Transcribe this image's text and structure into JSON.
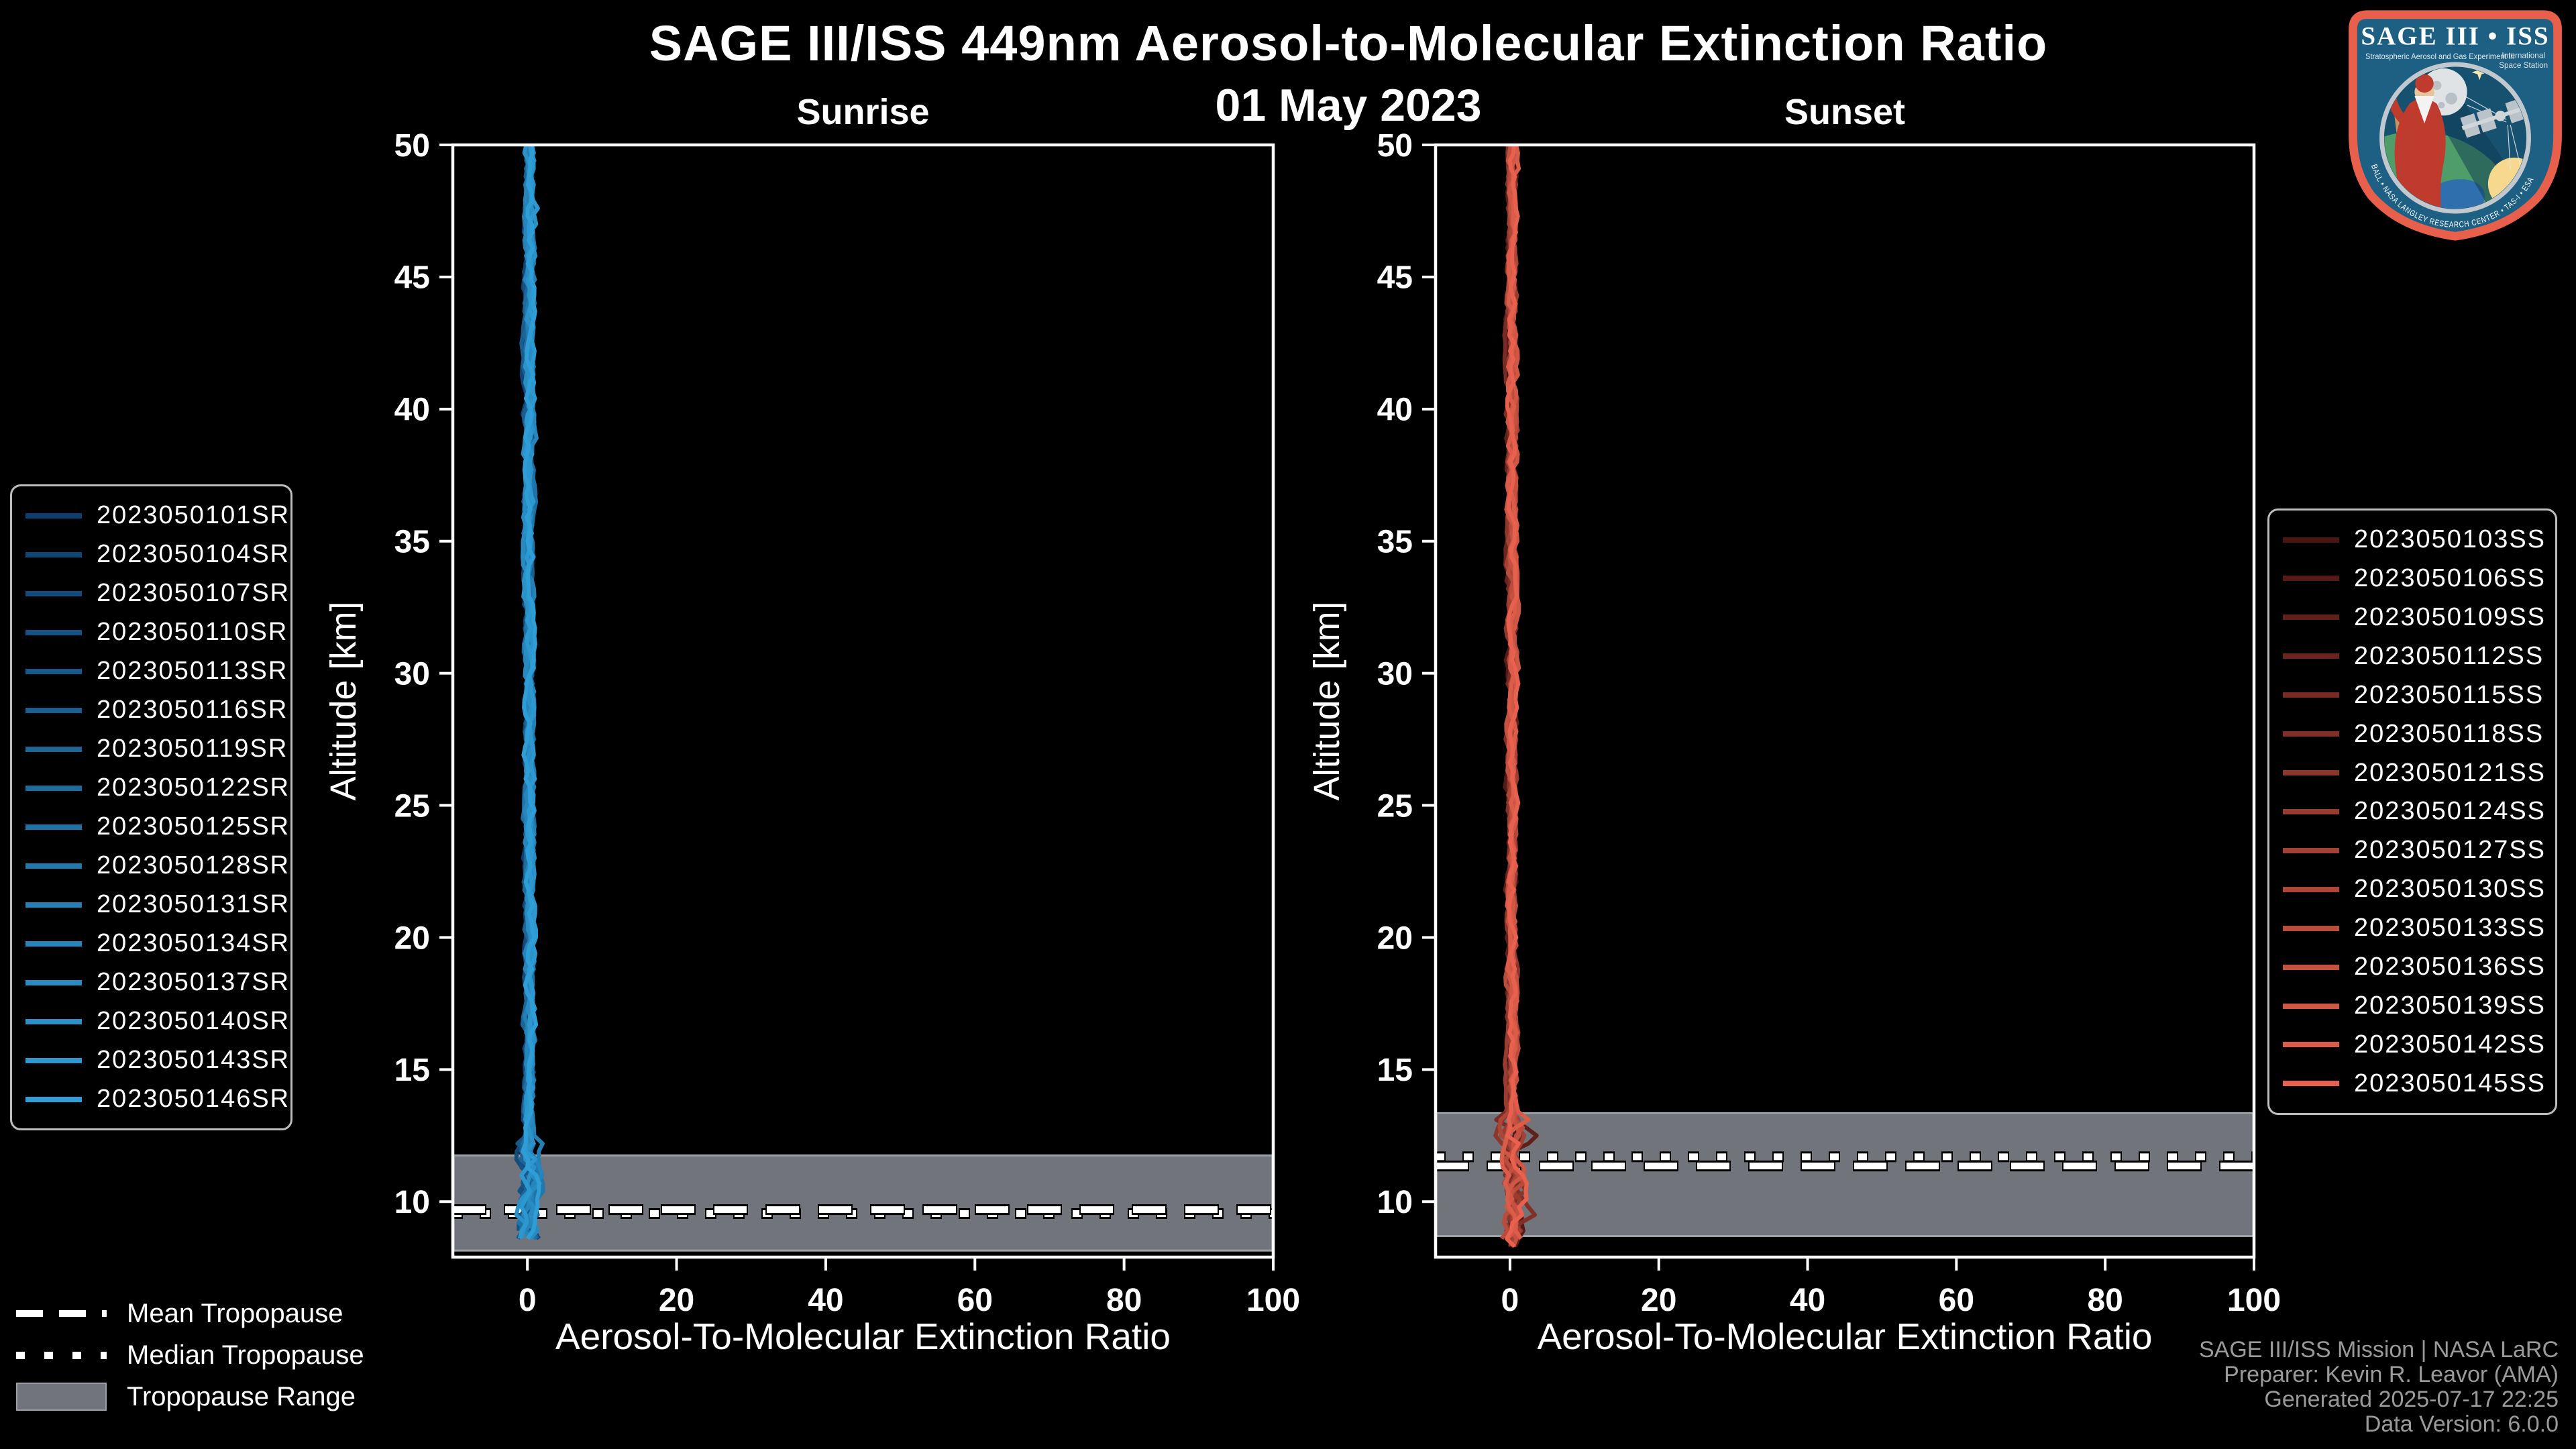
{
  "header": {
    "title": "SAGE III/ISS 449nm Aerosol-to-Molecular Extinction Ratio",
    "date": "01 May 2023"
  },
  "panels": [
    {
      "title": "Sunrise",
      "xlabel": "Aerosol-To-Molecular Extinction Ratio",
      "ylabel": "Altitude [km]"
    },
    {
      "title": "Sunset",
      "xlabel": "Aerosol-To-Molecular Extinction Ratio",
      "ylabel": "Altitude [km]"
    }
  ],
  "chart_data": [
    {
      "type": "line",
      "title": "Sunrise",
      "xlabel": "Aerosol-To-Molecular Extinction Ratio",
      "ylabel": "Altitude [km]",
      "xlim": [
        -10,
        100
      ],
      "ylim": [
        7.9,
        50
      ],
      "x_ticks": [
        0,
        20,
        40,
        60,
        80,
        100
      ],
      "y_ticks": [
        10,
        15,
        20,
        25,
        30,
        35,
        40,
        45,
        50
      ],
      "grid": false,
      "legend_position": "outside-left",
      "band_color": "#71757b",
      "band_edge_color": "#9ba1a6",
      "tropopause": {
        "mean_km": 9.7,
        "median_km": 9.55,
        "range_km": [
          8.15,
          11.75
        ]
      },
      "profiles": {
        "description": "16 sunrise extinction-ratio profiles, all hugging ratio ~0 (range about -0.5 to +2) from 50 km down to ~8.4 km, with enhanced variability of a few units inside the tropopause band",
        "x_center": 0.25,
        "noise_std": 0.36,
        "enhanced_km": [
          8.4,
          12.3
        ],
        "enhanced_scale": 2.2,
        "top_km": 50,
        "bottom_km_min": 8.3,
        "bottom_km_max": 8.8,
        "spurs": [
          {
            "series": 9,
            "km": 10.5,
            "magnitude": 2.6
          },
          {
            "series": 13,
            "km": 11.2,
            "magnitude": 1.6
          },
          {
            "series": 14,
            "km": 47.6,
            "magnitude": 0.8
          }
        ]
      },
      "series": [
        {
          "name": "2023050101SR",
          "color": "#0D3F6E"
        },
        {
          "name": "2023050104SR",
          "color": "#0F4575"
        },
        {
          "name": "2023050107SR",
          "color": "#124C7C"
        },
        {
          "name": "2023050110SR",
          "color": "#145283"
        },
        {
          "name": "2023050113SR",
          "color": "#165889"
        },
        {
          "name": "2023050116SR",
          "color": "#185F90"
        },
        {
          "name": "2023050119SR",
          "color": "#1B6597"
        },
        {
          "name": "2023050122SR",
          "color": "#1D6C9E"
        },
        {
          "name": "2023050125SR",
          "color": "#1F72A5"
        },
        {
          "name": "2023050128SR",
          "color": "#2178AC"
        },
        {
          "name": "2023050131SR",
          "color": "#247FB3"
        },
        {
          "name": "2023050134SR",
          "color": "#2685BA"
        },
        {
          "name": "2023050137SR",
          "color": "#288BC1"
        },
        {
          "name": "2023050140SR",
          "color": "#2A92C8"
        },
        {
          "name": "2023050143SR",
          "color": "#2D98CF"
        },
        {
          "name": "2023050146SR",
          "color": "#2F9ED6"
        }
      ]
    },
    {
      "type": "line",
      "title": "Sunset",
      "xlabel": "Aerosol-To-Molecular Extinction Ratio",
      "ylabel": "Altitude [km]",
      "xlim": [
        -10,
        100
      ],
      "ylim": [
        7.9,
        50
      ],
      "x_ticks": [
        0,
        20,
        40,
        60,
        80,
        100
      ],
      "y_ticks": [
        10,
        15,
        20,
        25,
        30,
        35,
        40,
        45,
        50
      ],
      "grid": false,
      "legend_position": "outside-right",
      "band_color": "#71757b",
      "band_edge_color": "#9ba1a6",
      "tropopause": {
        "mean_km": 11.35,
        "median_km": 11.7,
        "range_km": [
          8.7,
          13.35
        ]
      },
      "profiles": {
        "description": "15 sunset extinction-ratio profiles, all hugging ratio ~0 (range about -0.5 to +2) from 50 km down to ~8.2 km, with a dark-red excursion to ~+4 near 12.5 km inside the tropopause band",
        "x_center": 0.25,
        "noise_std": 0.36,
        "enhanced_km": [
          8.6,
          13.3
        ],
        "enhanced_scale": 2.2,
        "top_km": 50,
        "bottom_km_min": 8.1,
        "bottom_km_max": 8.6,
        "spurs": [
          {
            "series": 2,
            "km": 12.5,
            "magnitude": 3.6
          },
          {
            "series": 5,
            "km": 9.6,
            "magnitude": 1.9
          }
        ]
      },
      "series": [
        {
          "name": "2023050103SS",
          "color": "#4A1512"
        },
        {
          "name": "2023050106SS",
          "color": "#551A16"
        },
        {
          "name": "2023050109SS",
          "color": "#60201A"
        },
        {
          "name": "2023050112SS",
          "color": "#6B251F"
        },
        {
          "name": "2023050115SS",
          "color": "#772B23"
        },
        {
          "name": "2023050118SS",
          "color": "#823027"
        },
        {
          "name": "2023050121SS",
          "color": "#8D362B"
        },
        {
          "name": "2023050124SS",
          "color": "#983B30"
        },
        {
          "name": "2023050127SS",
          "color": "#A34134"
        },
        {
          "name": "2023050130SS",
          "color": "#AE4638"
        },
        {
          "name": "2023050133SS",
          "color": "#BA4C3C"
        },
        {
          "name": "2023050136SS",
          "color": "#C55141"
        },
        {
          "name": "2023050139SS",
          "color": "#D05745"
        },
        {
          "name": "2023050142SS",
          "color": "#DB5C49"
        },
        {
          "name": "2023050145SS",
          "color": "#E8604E"
        }
      ]
    }
  ],
  "tropopause_legend": {
    "items": [
      {
        "label": "Mean Tropopause",
        "style": "dashed"
      },
      {
        "label": "Median Tropopause",
        "style": "dotted"
      },
      {
        "label": "Tropopause Range",
        "style": "band"
      }
    ]
  },
  "attribution": {
    "lines": [
      "SAGE III/ISS Mission | NASA LaRC",
      "Preparer: Kevin R. Leavor (AMA)",
      "Generated 2025-07-17 22:25",
      "Data Version: 6.0.0"
    ]
  },
  "logo": {
    "title": "SAGE III • ISS",
    "subtitle_left": "Stratospheric Aerosol and Gas Experiment III",
    "subtitle_right_line1": "International",
    "subtitle_right_line2": "Space Station",
    "ring_text": "BALL • NASA LANGLEY RESEARCH CENTER • TAS-I • ESA",
    "border_color": "#E8604C",
    "background_color": "#1D6083"
  },
  "colors": {
    "background": "#000000",
    "axis": "#FFFFFF",
    "sunrise_line": "#1B87C9",
    "sunset_line": "#E25749",
    "tropopause_band": "#71757B",
    "attribution_text": "#9A9A9A"
  }
}
